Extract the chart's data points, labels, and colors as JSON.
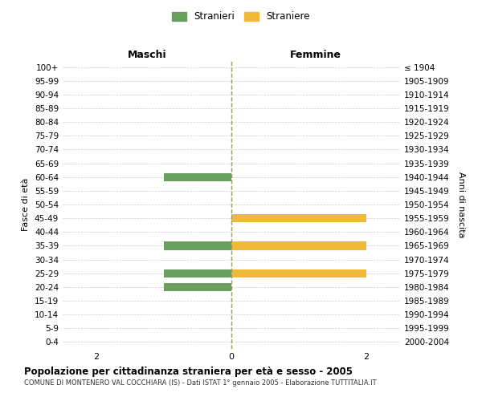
{
  "age_groups": [
    "100+",
    "95-99",
    "90-94",
    "85-89",
    "80-84",
    "75-79",
    "70-74",
    "65-69",
    "60-64",
    "55-59",
    "50-54",
    "45-49",
    "40-44",
    "35-39",
    "30-34",
    "25-29",
    "20-24",
    "15-19",
    "10-14",
    "5-9",
    "0-4"
  ],
  "birth_years": [
    "≤ 1904",
    "1905-1909",
    "1910-1914",
    "1915-1919",
    "1920-1924",
    "1925-1929",
    "1930-1934",
    "1935-1939",
    "1940-1944",
    "1945-1949",
    "1950-1954",
    "1955-1959",
    "1960-1964",
    "1965-1969",
    "1970-1974",
    "1975-1979",
    "1980-1984",
    "1985-1989",
    "1990-1994",
    "1995-1999",
    "2000-2004"
  ],
  "maschi": [
    0,
    0,
    0,
    0,
    0,
    0,
    0,
    0,
    1,
    0,
    0,
    0,
    0,
    1,
    0,
    1,
    1,
    0,
    0,
    0,
    0
  ],
  "femmine": [
    0,
    0,
    0,
    0,
    0,
    0,
    0,
    0,
    0,
    0,
    0,
    2,
    0,
    2,
    0,
    2,
    0,
    0,
    0,
    0,
    0
  ],
  "color_maschi": "#6a9e5e",
  "color_femmine": "#f0b93a",
  "title": "Popolazione per cittadinanza straniera per età e sesso - 2005",
  "subtitle": "COMUNE DI MONTENERO VAL COCCHIARA (IS) - Dati ISTAT 1° gennaio 2005 - Elaborazione TUTTITALIA.IT",
  "ylabel_left": "Fasce di età",
  "ylabel_right": "Anni di nascita",
  "label_maschi": "Maschi",
  "label_femmine": "Femmine",
  "legend_maschi": "Stranieri",
  "legend_femmine": "Straniere",
  "xlim": 2.5,
  "background_color": "#ffffff",
  "grid_color": "#cccccc",
  "vline_color": "#999966"
}
